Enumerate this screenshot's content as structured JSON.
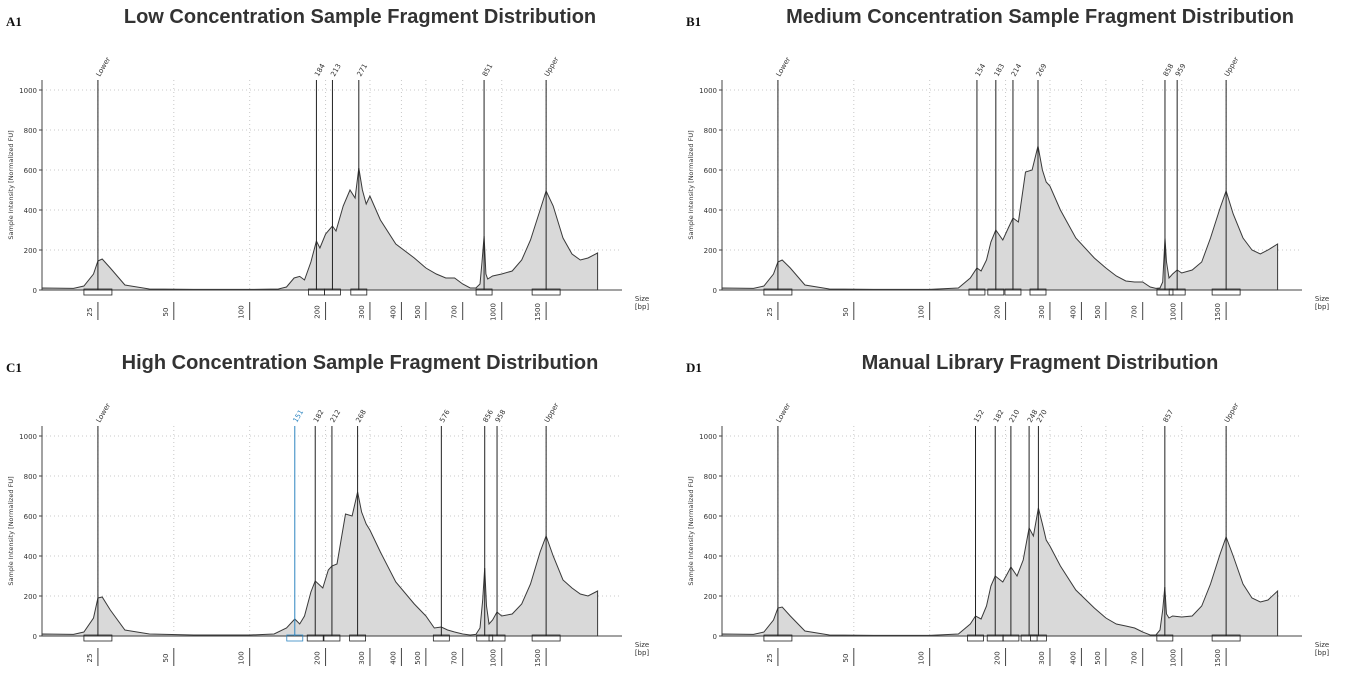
{
  "panels": [
    {
      "letter": "A1",
      "title": "Low Concentration Sample Fragment Distribution"
    },
    {
      "letter": "B1",
      "title": "Medium Concentration Sample Fragment Distribution"
    },
    {
      "letter": "C1",
      "title": "High Concentration Sample Fragment Distribution"
    },
    {
      "letter": "D1",
      "title": "Manual Library Fragment Distribution"
    }
  ],
  "chart_data": [
    {
      "type": "area",
      "title": "Low Concentration Sample Fragment Distribution",
      "ylabel": "Sample Intensity [Normalized FU]",
      "xlabel": "Size [bp]",
      "xlabel_lines": [
        "Size",
        "[bp]"
      ],
      "ylim": [
        0,
        1050
      ],
      "yticks": [
        0,
        200,
        400,
        600,
        800,
        1000
      ],
      "x_scale": "log",
      "xlim": [
        15,
        3000
      ],
      "xticks": [
        25,
        50,
        100,
        200,
        300,
        400,
        500,
        700,
        1000,
        1500
      ],
      "grid": true,
      "fill_color": "#d9d9d9",
      "series": [
        {
          "x": [
            15,
            20,
            22,
            24,
            25,
            26,
            28,
            32,
            40,
            60,
            100,
            130,
            140,
            150,
            158,
            165,
            175,
            184,
            190,
            200,
            213,
            220,
            235,
            250,
            262,
            271,
            280,
            290,
            300,
            330,
            380,
            450,
            500,
            550,
            600,
            650,
            700,
            750,
            790,
            820,
            835,
            851,
            865,
            880,
            920,
            1000,
            1100,
            1200,
            1300,
            1420,
            1500,
            1600,
            1750,
            1900,
            2050,
            2200,
            2400
          ],
          "y": [
            10,
            8,
            20,
            80,
            145,
            155,
            110,
            25,
            5,
            3,
            3,
            5,
            15,
            60,
            68,
            50,
            140,
            245,
            210,
            280,
            320,
            295,
            420,
            500,
            460,
            610,
            500,
            430,
            470,
            350,
            230,
            160,
            110,
            80,
            60,
            60,
            30,
            10,
            10,
            30,
            140,
            270,
            80,
            55,
            70,
            80,
            95,
            150,
            250,
            400,
            495,
            420,
            260,
            180,
            150,
            160,
            185
          ]
        }
      ],
      "peaks": [
        {
          "label": "Lower",
          "x": 25,
          "intensity": 155
        },
        {
          "label": "184",
          "x": 184,
          "intensity": 245
        },
        {
          "label": "213",
          "x": 213,
          "intensity": 320
        },
        {
          "label": "271",
          "x": 271,
          "intensity": 610
        },
        {
          "label": "851",
          "x": 851,
          "intensity": 270
        },
        {
          "label": "Upper",
          "x": 1500,
          "intensity": 495
        }
      ],
      "peak_label_color": "#333333",
      "highlight_peak_color": "#2e86c1"
    },
    {
      "type": "area",
      "title": "Medium Concentration Sample Fragment Distribution",
      "ylabel": "Sample Intensity [Normalized FU]",
      "xlabel": "Size [bp]",
      "xlabel_lines": [
        "Size",
        "[bp]"
      ],
      "ylim": [
        0,
        1050
      ],
      "yticks": [
        0,
        200,
        400,
        600,
        800,
        1000
      ],
      "x_scale": "log",
      "xlim": [
        15,
        3000
      ],
      "xticks": [
        25,
        50,
        100,
        200,
        300,
        400,
        500,
        700,
        1000,
        1500
      ],
      "grid": true,
      "fill_color": "#d9d9d9",
      "series": [
        {
          "x": [
            15,
            20,
            22,
            24,
            25,
            26,
            28,
            32,
            40,
            60,
            100,
            130,
            145,
            154,
            160,
            168,
            175,
            183,
            195,
            205,
            214,
            225,
            240,
            255,
            269,
            280,
            290,
            300,
            330,
            380,
            450,
            500,
            550,
            600,
            650,
            700,
            750,
            790,
            820,
            840,
            858,
            870,
            890,
            920,
            959,
            1000,
            1100,
            1200,
            1300,
            1420,
            1500,
            1600,
            1750,
            1900,
            2050,
            2200,
            2400
          ],
          "y": [
            10,
            8,
            20,
            80,
            140,
            150,
            110,
            25,
            5,
            3,
            3,
            10,
            60,
            110,
            95,
            150,
            240,
            300,
            250,
            310,
            360,
            340,
            590,
            600,
            720,
            600,
            540,
            520,
            400,
            260,
            160,
            110,
            70,
            45,
            40,
            40,
            15,
            8,
            10,
            40,
            260,
            140,
            60,
            80,
            100,
            85,
            100,
            140,
            260,
            410,
            495,
            380,
            260,
            200,
            180,
            200,
            230
          ]
        }
      ],
      "peaks": [
        {
          "label": "Lower",
          "x": 25,
          "intensity": 150
        },
        {
          "label": "154",
          "x": 154,
          "intensity": 110
        },
        {
          "label": "183",
          "x": 183,
          "intensity": 300
        },
        {
          "label": "214",
          "x": 214,
          "intensity": 360
        },
        {
          "label": "269",
          "x": 269,
          "intensity": 720
        },
        {
          "label": "858",
          "x": 858,
          "intensity": 260
        },
        {
          "label": "959",
          "x": 959,
          "intensity": 100
        },
        {
          "label": "Upper",
          "x": 1500,
          "intensity": 495
        }
      ],
      "peak_label_color": "#333333",
      "highlight_peak_color": "#2e86c1"
    },
    {
      "type": "area",
      "title": "High Concentration Sample Fragment Distribution",
      "ylabel": "Sample Intensity [Normalized FU]",
      "xlabel": "Size [bp]",
      "xlabel_lines": [
        "Size",
        "[bp]"
      ],
      "ylim": [
        0,
        1050
      ],
      "yticks": [
        0,
        200,
        400,
        600,
        800,
        1000
      ],
      "x_scale": "log",
      "xlim": [
        15,
        3000
      ],
      "xticks": [
        25,
        50,
        100,
        200,
        300,
        400,
        500,
        700,
        1000,
        1500
      ],
      "grid": true,
      "fill_color": "#d9d9d9",
      "series": [
        {
          "x": [
            15,
            20,
            22,
            24,
            25,
            26,
            28,
            32,
            40,
            60,
            100,
            125,
            140,
            151,
            158,
            165,
            175,
            182,
            195,
            205,
            212,
            222,
            240,
            255,
            268,
            278,
            290,
            300,
            330,
            380,
            450,
            500,
            540,
            576,
            610,
            650,
            700,
            750,
            790,
            820,
            840,
            856,
            870,
            890,
            920,
            958,
            1000,
            1100,
            1200,
            1300,
            1420,
            1500,
            1600,
            1750,
            1900,
            2050,
            2200,
            2400
          ],
          "y": [
            10,
            8,
            20,
            90,
            190,
            195,
            130,
            30,
            10,
            5,
            5,
            10,
            40,
            85,
            60,
            100,
            220,
            275,
            240,
            330,
            350,
            360,
            610,
            600,
            720,
            620,
            560,
            530,
            420,
            270,
            160,
            100,
            40,
            45,
            30,
            20,
            10,
            5,
            8,
            40,
            180,
            340,
            150,
            60,
            80,
            120,
            100,
            110,
            160,
            260,
            420,
            500,
            400,
            280,
            240,
            210,
            200,
            225
          ]
        }
      ],
      "peaks": [
        {
          "label": "Lower",
          "x": 25,
          "intensity": 195
        },
        {
          "label": "151",
          "x": 151,
          "intensity": 85,
          "highlighted": true
        },
        {
          "label": "182",
          "x": 182,
          "intensity": 275
        },
        {
          "label": "212",
          "x": 212,
          "intensity": 350
        },
        {
          "label": "268",
          "x": 268,
          "intensity": 720
        },
        {
          "label": "576",
          "x": 576,
          "intensity": 45
        },
        {
          "label": "856",
          "x": 856,
          "intensity": 340
        },
        {
          "label": "958",
          "x": 958,
          "intensity": 120
        },
        {
          "label": "Upper",
          "x": 1500,
          "intensity": 500
        }
      ],
      "peak_label_color": "#333333",
      "highlight_peak_color": "#2e86c1"
    },
    {
      "type": "area",
      "title": "Manual Library Fragment Distribution",
      "ylabel": "Sample Intensity [Normalized FU]",
      "xlabel": "Size [bp]",
      "xlabel_lines": [
        "Size",
        "[bp]"
      ],
      "ylim": [
        0,
        1050
      ],
      "yticks": [
        0,
        200,
        400,
        600,
        800,
        1000
      ],
      "x_scale": "log",
      "xlim": [
        15,
        3000
      ],
      "xticks": [
        25,
        50,
        100,
        200,
        300,
        400,
        500,
        700,
        1000,
        1500
      ],
      "grid": true,
      "fill_color": "#d9d9d9",
      "series": [
        {
          "x": [
            15,
            20,
            22,
            24,
            25,
            26,
            28,
            32,
            40,
            60,
            100,
            130,
            145,
            152,
            160,
            168,
            175,
            182,
            195,
            203,
            210,
            222,
            235,
            248,
            258,
            270,
            280,
            290,
            300,
            330,
            380,
            450,
            500,
            550,
            600,
            650,
            700,
            750,
            790,
            820,
            840,
            857,
            870,
            890,
            920,
            1000,
            1100,
            1200,
            1300,
            1420,
            1500,
            1600,
            1750,
            1900,
            2050,
            2200,
            2400
          ],
          "y": [
            10,
            8,
            20,
            80,
            140,
            145,
            100,
            25,
            5,
            3,
            3,
            10,
            60,
            100,
            85,
            150,
            250,
            300,
            270,
            310,
            345,
            300,
            380,
            540,
            500,
            640,
            560,
            480,
            450,
            350,
            230,
            140,
            90,
            60,
            50,
            40,
            20,
            5,
            5,
            30,
            130,
            245,
            110,
            90,
            100,
            95,
            100,
            150,
            260,
            410,
            495,
            400,
            260,
            190,
            170,
            180,
            225
          ]
        }
      ],
      "peaks": [
        {
          "label": "Lower",
          "x": 25,
          "intensity": 145
        },
        {
          "label": "152",
          "x": 152,
          "intensity": 100
        },
        {
          "label": "182",
          "x": 182,
          "intensity": 300
        },
        {
          "label": "210",
          "x": 210,
          "intensity": 345
        },
        {
          "label": "248",
          "x": 248,
          "intensity": 540
        },
        {
          "label": "270",
          "x": 270,
          "intensity": 640
        },
        {
          "label": "857",
          "x": 857,
          "intensity": 245
        },
        {
          "label": "Upper",
          "x": 1500,
          "intensity": 495
        }
      ],
      "peak_label_color": "#333333",
      "highlight_peak_color": "#2e86c1"
    }
  ]
}
